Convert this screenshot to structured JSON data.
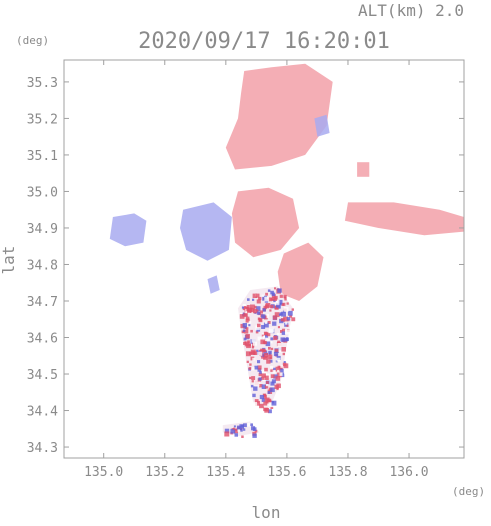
{
  "header": {
    "altitude_label": "ALT(km)  2.0",
    "timestamp": "2020/09/17 16:20:01"
  },
  "colors": {
    "frame": "#a0a0a0",
    "text": "#8a8a8a",
    "positive": "#f2a0a8",
    "negative": "#a8aaf0",
    "strong_positive": "#e0506a",
    "strong_negative": "#6060d8"
  },
  "chart_data": {
    "type": "heatmap",
    "title": "2020/09/17 16:20:01",
    "subtitle": "ALT(km)  2.0",
    "xlabel": "lon",
    "ylabel": "lat",
    "x_unit": "(deg)",
    "y_unit": "(deg)",
    "xlim": [
      134.87,
      136.18
    ],
    "ylim": [
      34.27,
      35.36
    ],
    "x_ticks": [
      135.0,
      135.2,
      135.4,
      135.6,
      135.8,
      136.0
    ],
    "x_tick_labels": [
      "135.0",
      "135.2",
      "135.4",
      "135.6",
      "135.8",
      "136.0"
    ],
    "y_ticks": [
      34.3,
      34.4,
      34.5,
      34.6,
      34.7,
      34.8,
      34.9,
      35.0,
      35.1,
      35.2,
      35.3
    ],
    "y_tick_labels": [
      "34.3",
      "34.4",
      "34.5",
      "34.6",
      "34.7",
      "34.8",
      "34.9",
      "35.0",
      "35.1",
      "35.2",
      "35.3"
    ],
    "grid": false,
    "regions": [
      {
        "name": "north-pink",
        "sign": "positive",
        "polygon": [
          [
            135.46,
            35.33
          ],
          [
            135.55,
            35.34
          ],
          [
            135.66,
            35.35
          ],
          [
            135.75,
            35.3
          ],
          [
            135.73,
            35.18
          ],
          [
            135.66,
            35.1
          ],
          [
            135.55,
            35.07
          ],
          [
            135.43,
            35.06
          ],
          [
            135.4,
            35.12
          ],
          [
            135.44,
            35.2
          ],
          [
            135.45,
            35.27
          ]
        ]
      },
      {
        "name": "central-pink",
        "sign": "positive",
        "polygon": [
          [
            135.44,
            35.0
          ],
          [
            135.54,
            35.01
          ],
          [
            135.62,
            34.98
          ],
          [
            135.64,
            34.9
          ],
          [
            135.58,
            34.84
          ],
          [
            135.49,
            34.82
          ],
          [
            135.43,
            34.86
          ],
          [
            135.42,
            34.94
          ]
        ]
      },
      {
        "name": "east-pink",
        "sign": "positive",
        "polygon": [
          [
            135.8,
            34.97
          ],
          [
            135.95,
            34.97
          ],
          [
            136.1,
            34.95
          ],
          [
            136.18,
            34.93
          ],
          [
            136.18,
            34.89
          ],
          [
            136.05,
            34.88
          ],
          [
            135.9,
            34.9
          ],
          [
            135.79,
            34.92
          ]
        ]
      },
      {
        "name": "southcentral-pink",
        "sign": "positive",
        "polygon": [
          [
            135.59,
            34.83
          ],
          [
            135.67,
            34.86
          ],
          [
            135.72,
            34.82
          ],
          [
            135.7,
            34.74
          ],
          [
            135.64,
            34.7
          ],
          [
            135.58,
            34.72
          ],
          [
            135.57,
            34.78
          ]
        ]
      },
      {
        "name": "ne-small-pink",
        "sign": "positive",
        "polygon": [
          [
            135.83,
            35.08
          ],
          [
            135.87,
            35.08
          ],
          [
            135.87,
            35.04
          ],
          [
            135.83,
            35.04
          ]
        ]
      },
      {
        "name": "west-blue",
        "sign": "negative",
        "polygon": [
          [
            135.03,
            34.93
          ],
          [
            135.1,
            34.94
          ],
          [
            135.14,
            34.92
          ],
          [
            135.13,
            34.86
          ],
          [
            135.07,
            34.85
          ],
          [
            135.02,
            34.87
          ]
        ]
      },
      {
        "name": "centerwest-blue",
        "sign": "negative",
        "polygon": [
          [
            135.26,
            34.95
          ],
          [
            135.36,
            34.97
          ],
          [
            135.42,
            34.93
          ],
          [
            135.41,
            34.84
          ],
          [
            135.34,
            34.81
          ],
          [
            135.27,
            34.84
          ],
          [
            135.25,
            34.9
          ]
        ]
      },
      {
        "name": "small-blue-1",
        "sign": "negative",
        "polygon": [
          [
            135.34,
            34.76
          ],
          [
            135.37,
            34.77
          ],
          [
            135.38,
            34.73
          ],
          [
            135.35,
            34.72
          ]
        ]
      },
      {
        "name": "small-blue-2",
        "sign": "negative",
        "polygon": [
          [
            135.69,
            35.2
          ],
          [
            135.73,
            35.21
          ],
          [
            135.74,
            35.16
          ],
          [
            135.7,
            35.15
          ]
        ]
      },
      {
        "name": "south-mixed",
        "sign": "mixed",
        "polygon": [
          [
            135.48,
            34.73
          ],
          [
            135.57,
            34.74
          ],
          [
            135.62,
            34.68
          ],
          [
            135.6,
            34.58
          ],
          [
            135.58,
            34.48
          ],
          [
            135.54,
            34.4
          ],
          [
            135.49,
            34.42
          ],
          [
            135.47,
            34.52
          ],
          [
            135.45,
            34.62
          ],
          [
            135.44,
            34.68
          ]
        ]
      },
      {
        "name": "far-south-strip",
        "sign": "mixed",
        "polygon": [
          [
            135.39,
            34.36
          ],
          [
            135.48,
            34.37
          ],
          [
            135.51,
            34.34
          ],
          [
            135.44,
            34.33
          ],
          [
            135.39,
            34.34
          ]
        ]
      }
    ]
  }
}
